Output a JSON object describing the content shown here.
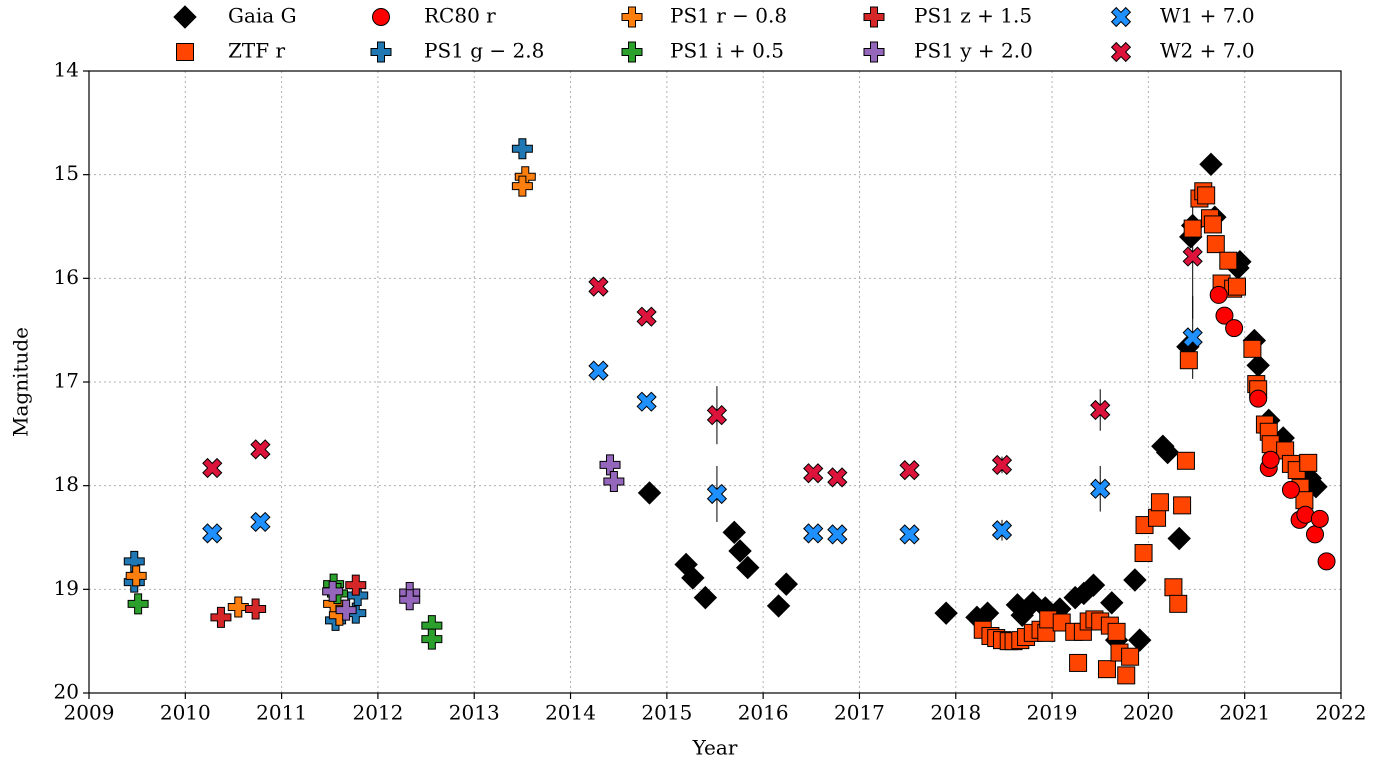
{
  "chart_data": {
    "type": "scatter",
    "xlabel": "Year",
    "ylabel": "Magnitude",
    "xlim": [
      2009,
      2022
    ],
    "ylim": [
      20,
      14
    ],
    "xticks": [
      2009,
      2010,
      2011,
      2012,
      2013,
      2014,
      2015,
      2016,
      2017,
      2018,
      2019,
      2020,
      2021,
      2022
    ],
    "yticks": [
      14,
      15,
      16,
      17,
      18,
      19,
      20
    ],
    "grid": true,
    "legend": "top",
    "series": [
      {
        "name": "Gaia G",
        "color": "#000000",
        "marker": "diamond",
        "x": [
          2014.82,
          2015.2,
          2015.27,
          2015.4,
          2015.7,
          2015.76,
          2015.84,
          2016.16,
          2016.24,
          2017.9,
          2018.22,
          2018.33,
          2018.64,
          2018.69,
          2018.8,
          2018.93,
          2019.08,
          2019.24,
          2019.33,
          2019.43,
          2019.62,
          2019.67,
          2019.86,
          2019.91,
          2020.15,
          2020.2,
          2020.32,
          2020.41,
          2020.44,
          2020.46,
          2020.65,
          2020.69,
          2020.93,
          2020.95,
          2021.1,
          2021.14,
          2021.25,
          2021.4,
          2021.58,
          2021.68,
          2021.74
        ],
        "values": [
          18.07,
          18.76,
          18.89,
          19.08,
          18.45,
          18.63,
          18.79,
          19.16,
          18.95,
          19.23,
          19.27,
          19.23,
          19.15,
          19.25,
          19.13,
          19.18,
          19.19,
          19.08,
          19.04,
          18.96,
          19.13,
          19.49,
          18.91,
          19.49,
          17.62,
          17.68,
          18.51,
          16.66,
          15.6,
          15.49,
          14.9,
          15.41,
          15.9,
          15.84,
          16.6,
          16.84,
          17.37,
          17.54,
          17.83,
          17.93,
          18.01
        ]
      },
      {
        "name": "ZTF r",
        "color": "#ff4500",
        "marker": "square",
        "x": [
          2018.28,
          2018.36,
          2018.42,
          2018.48,
          2018.55,
          2018.6,
          2018.67,
          2018.73,
          2018.8,
          2018.88,
          2018.94,
          2018.96,
          2019.1,
          2019.23,
          2019.27,
          2019.32,
          2019.38,
          2019.44,
          2019.5,
          2019.57,
          2019.6,
          2019.67,
          2019.7,
          2019.77,
          2019.81,
          2019.95,
          2019.96,
          2020.09,
          2020.12,
          2020.26,
          2020.31,
          2020.35,
          2020.39,
          2020.42,
          2020.46,
          2020.53,
          2020.57,
          2020.6,
          2020.64,
          2020.67,
          2020.7,
          2020.76,
          2020.83,
          2020.88,
          2020.92,
          2021.08,
          2021.12,
          2021.14,
          2021.21,
          2021.25,
          2021.27,
          2021.42,
          2021.48,
          2021.54,
          2021.58,
          2021.62,
          2021.66
        ],
        "values": [
          19.39,
          19.45,
          19.47,
          19.49,
          19.5,
          19.5,
          19.49,
          19.46,
          19.42,
          19.39,
          19.42,
          19.29,
          19.32,
          19.41,
          19.71,
          19.41,
          19.31,
          19.29,
          19.31,
          19.77,
          19.35,
          19.41,
          19.61,
          19.83,
          19.65,
          18.65,
          18.38,
          18.31,
          18.16,
          18.98,
          19.14,
          18.19,
          17.76,
          16.79,
          15.52,
          15.23,
          15.16,
          15.2,
          15.42,
          15.48,
          15.67,
          16.05,
          15.83,
          16.1,
          16.08,
          16.68,
          17.02,
          17.07,
          17.41,
          17.48,
          17.6,
          17.66,
          17.79,
          17.85,
          18.02,
          18.14,
          17.78
        ]
      },
      {
        "name": "RC80 r",
        "color": "#ff0000",
        "marker": "circle",
        "x": [
          2020.73,
          2020.79,
          2020.89,
          2021.14,
          2021.25,
          2021.27,
          2021.48,
          2021.57,
          2021.63,
          2021.73,
          2021.78,
          2021.85
        ],
        "values": [
          16.16,
          16.36,
          16.48,
          17.16,
          17.83,
          17.75,
          18.04,
          18.33,
          18.28,
          18.47,
          18.32,
          18.73
        ]
      },
      {
        "name": "PS1 g − 2.8",
        "color": "#1f77b4",
        "marker": "plus",
        "x": [
          2009.47,
          2009.47,
          2011.56,
          2011.77,
          2011.79,
          2013.5
        ],
        "values": [
          18.73,
          18.93,
          19.3,
          19.23,
          19.06,
          14.75
        ]
      },
      {
        "name": "PS1 r − 0.8",
        "color": "#ff7f0e",
        "marker": "plus",
        "x": [
          2009.49,
          2010.55,
          2011.54,
          2011.6,
          2013.53,
          2013.5
        ],
        "values": [
          18.87,
          19.17,
          19.14,
          19.25,
          15.02,
          15.11
        ]
      },
      {
        "name": "PS1 i + 0.5",
        "color": "#2ca02c",
        "marker": "plus",
        "x": [
          2009.51,
          2011.54,
          2011.58,
          2012.56,
          2012.56
        ],
        "values": [
          19.14,
          18.95,
          19.04,
          19.35,
          19.48
        ]
      },
      {
        "name": "PS1 z + 1.5",
        "color": "#d62728",
        "marker": "plus",
        "x": [
          2010.37,
          2010.73,
          2011.77
        ],
        "values": [
          19.27,
          19.19,
          18.96
        ]
      },
      {
        "name": "PS1 y + 2.0",
        "color": "#9467bd",
        "marker": "plus",
        "x": [
          2011.53,
          2011.67,
          2012.33,
          2012.33,
          2014.41,
          2014.45
        ],
        "values": [
          19.02,
          19.2,
          19.03,
          19.1,
          17.8,
          17.96
        ]
      },
      {
        "name": "W1 + 7.0",
        "color": "#1e90ff",
        "marker": "x",
        "x": [
          2010.28,
          2010.78,
          2014.29,
          2014.79,
          2015.52,
          2016.52,
          2016.77,
          2017.52,
          2018.48,
          2019.5,
          2020.46
        ],
        "values": [
          18.46,
          18.35,
          16.89,
          17.19,
          18.08,
          18.46,
          18.47,
          18.47,
          18.43,
          18.03,
          16.57
        ],
        "errors": [
          null,
          null,
          null,
          null,
          0.27,
          null,
          null,
          null,
          0.1,
          0.22,
          0.4
        ]
      },
      {
        "name": "W2 + 7.0",
        "color": "#dc143c",
        "marker": "x",
        "x": [
          2010.28,
          2010.78,
          2014.29,
          2014.79,
          2015.52,
          2016.52,
          2016.77,
          2017.52,
          2018.48,
          2019.5,
          2020.46
        ],
        "values": [
          17.83,
          17.65,
          16.08,
          16.37,
          17.32,
          17.88,
          17.92,
          17.85,
          17.8,
          17.27,
          15.79
        ],
        "errors": [
          null,
          null,
          null,
          null,
          0.28,
          null,
          null,
          null,
          0.08,
          0.2,
          0.6
        ]
      }
    ]
  }
}
